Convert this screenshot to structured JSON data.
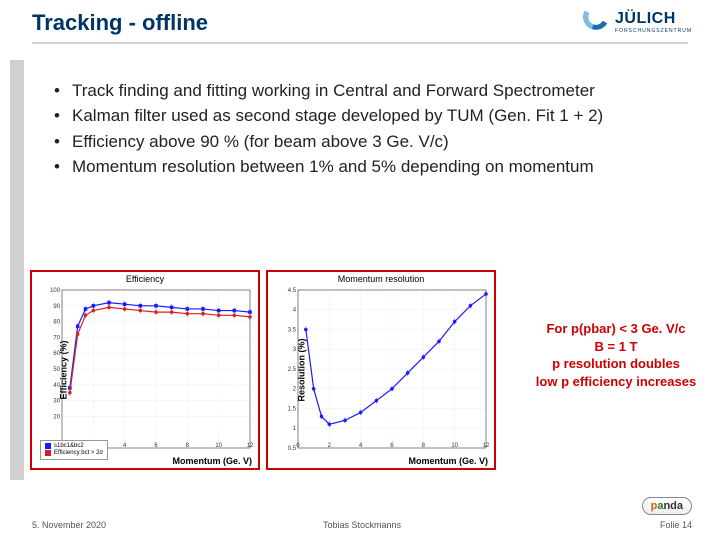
{
  "title": "Tracking - offline",
  "logo": {
    "name": "JÜLICH",
    "sub": "FORSCHUNGSZENTRUM"
  },
  "bullets": [
    "Track finding and fitting working in Central and Forward Spectrometer",
    "Kalman filter used as second stage developed by TUM (Gen. Fit 1 + 2)",
    "Efficiency above 90 % (for beam above 3 Ge. V/c)",
    "Momentum resolution between 1% and 5% depending on momentum"
  ],
  "annotation": {
    "l1": "For p(pbar) < 3 Ge. V/c",
    "l2": "B = 1 T",
    "l3": "p resolution doubles",
    "l4": "low p efficiency increases"
  },
  "chart1": {
    "title": "Efficiency",
    "ylabel": "Efficiency (%)",
    "xlabel": "Momentum (Ge. V)",
    "xlim": [
      0,
      12
    ],
    "ylim": [
      0,
      100
    ],
    "xticks": [
      0,
      2,
      4,
      6,
      8,
      10,
      12
    ],
    "yticks": [
      20,
      30,
      40,
      50,
      60,
      70,
      80,
      90,
      100
    ],
    "series": [
      {
        "name": "s1bc1&bc2",
        "color": "#1a1aff",
        "marker": "square",
        "x": [
          0.5,
          1,
          1.5,
          2,
          3,
          4,
          5,
          6,
          7,
          8,
          9,
          10,
          11,
          12
        ],
        "y": [
          38,
          77,
          88,
          90,
          92,
          91,
          90,
          90,
          89,
          88,
          88,
          87,
          87,
          86
        ]
      },
      {
        "name": "Efficiency bct > 2σ",
        "color": "#d62020",
        "marker": "circle",
        "x": [
          0.5,
          1,
          1.5,
          2,
          3,
          4,
          5,
          6,
          7,
          8,
          9,
          10,
          11,
          12
        ],
        "y": [
          35,
          72,
          84,
          87,
          89,
          88,
          87,
          86,
          86,
          85,
          85,
          84,
          84,
          83
        ]
      }
    ],
    "grid_color": "#cccccc",
    "background_color": "#ffffff",
    "legend": [
      "s1bc1&bc2",
      "Efficiency bct > 2σ"
    ]
  },
  "chart2": {
    "title": "Momentum resolution",
    "ylabel": "Resolution (%)",
    "xlabel": "Momentum (Ge. V)",
    "xlim": [
      0,
      12
    ],
    "ylim": [
      0.5,
      4.5
    ],
    "xticks": [
      0,
      2,
      4,
      6,
      8,
      10,
      12
    ],
    "yticks": [
      0.5,
      1,
      1.5,
      2,
      2.5,
      3,
      3.5,
      4,
      4.5
    ],
    "series": [
      {
        "name": "resolution",
        "color": "#1a1aff",
        "marker": "circle",
        "x": [
          0.5,
          1,
          1.5,
          2,
          3,
          4,
          5,
          6,
          7,
          8,
          9,
          10,
          11,
          12
        ],
        "y": [
          3.5,
          2.0,
          1.3,
          1.1,
          1.2,
          1.4,
          1.7,
          2.0,
          2.4,
          2.8,
          3.2,
          3.7,
          4.1,
          4.4
        ]
      }
    ],
    "grid_color": "#cccccc",
    "background_color": "#ffffff"
  },
  "footer": {
    "date": "5. November 2020",
    "author": "Tobias Stockmanns",
    "page": "Folie 14"
  },
  "panda": {
    "p1": "p",
    "p2": "a",
    "p3": "nda"
  }
}
